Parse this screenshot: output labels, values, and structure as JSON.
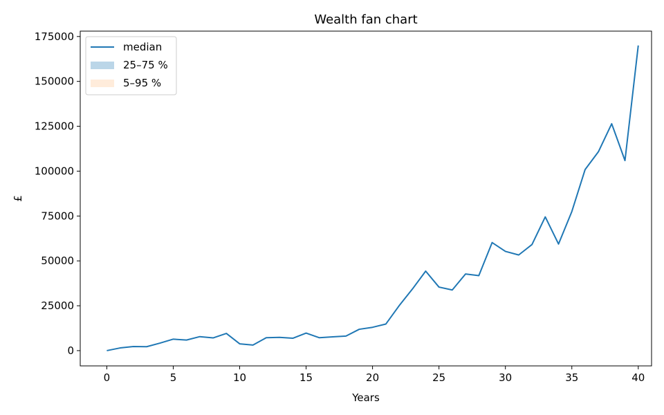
{
  "chart_data": {
    "type": "line",
    "title": "Wealth fan chart",
    "xlabel": "Years",
    "ylabel": "£",
    "xlim": [
      -2,
      41
    ],
    "ylim": [
      -8500,
      178000
    ],
    "xticks": [
      0,
      5,
      10,
      15,
      20,
      25,
      30,
      35,
      40
    ],
    "yticks": [
      0,
      25000,
      50000,
      75000,
      100000,
      125000,
      150000,
      175000
    ],
    "grid": false,
    "legend_position": "top-left",
    "series": [
      {
        "name": "median",
        "color": "#1f77b4",
        "x": [
          0,
          1,
          2,
          3,
          4,
          5,
          6,
          7,
          8,
          9,
          10,
          11,
          12,
          13,
          14,
          15,
          16,
          17,
          18,
          19,
          20,
          21,
          22,
          23,
          24,
          25,
          26,
          27,
          28,
          29,
          30,
          31,
          32,
          33,
          34,
          35,
          36,
          37,
          38,
          39,
          40
        ],
        "values": [
          0,
          1500,
          2300,
          2200,
          4200,
          6400,
          5900,
          7800,
          7100,
          9600,
          3800,
          3100,
          7200,
          7400,
          6900,
          9800,
          7200,
          7700,
          8100,
          11900,
          13000,
          14800,
          25000,
          34300,
          44300,
          35400,
          33800,
          42700,
          41800,
          60200,
          55300,
          53300,
          59100,
          74500,
          59400,
          77500,
          100900,
          110800,
          126400,
          105900,
          170000
        ]
      }
    ],
    "bands": [
      {
        "name": "25–75 %",
        "color": "#1f77b4",
        "opacity": 0.3
      },
      {
        "name": "5–95 %",
        "color": "#ff7f0e",
        "opacity": 0.15
      }
    ]
  }
}
